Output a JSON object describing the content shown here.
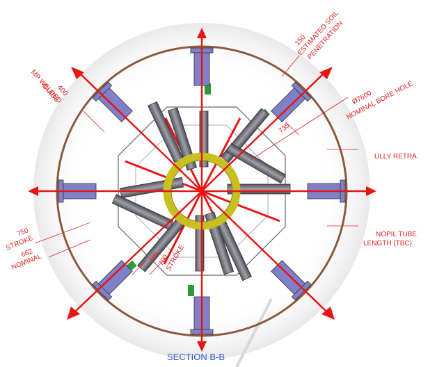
{
  "caption": "SECTION B-B",
  "labels": {
    "soil_1": "150",
    "soil_2": "ESTIMATED SOIL",
    "soil_3": "PENETRATION",
    "guide_1": "400",
    "guide_2": "MP WELDED",
    "guide_3": "GUIDE",
    "bore_1": "Ø7600",
    "bore_2": "NOMINAL BORE HOLE",
    "dim_735": "735",
    "retract": "ULLY RETRA",
    "tube_1": "NOPIL TUBE",
    "tube_2": "LENGTH (TBC)",
    "stroke_val": "750",
    "stroke_word": "STROKE",
    "nominal_val": "662",
    "nominal_word": "NOMINAL",
    "dim_495": "495",
    "stroke2_val": "700",
    "stroke2_word": "STROKE"
  },
  "colors": {
    "arrow": "#e81515",
    "ring": "#8b5a3c",
    "pad": "#8080c8",
    "collar": "#c8c020",
    "frame": "#666666",
    "marker_green": "#2e9a3a",
    "text_red": "#e02020",
    "caption_blue": "#3a5bd0"
  }
}
